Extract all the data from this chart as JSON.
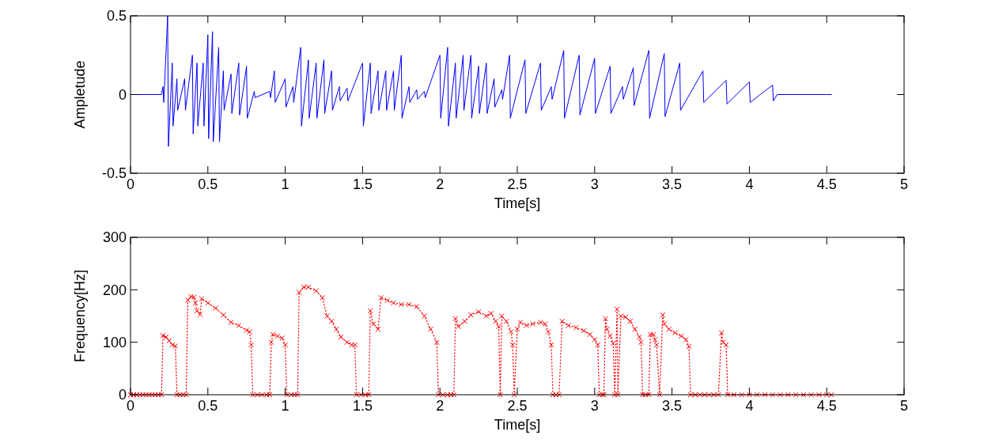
{
  "chart_data": [
    {
      "type": "line",
      "xlabel": "Time[s]",
      "ylabel": "Ampletude",
      "xlim": [
        0,
        5
      ],
      "ylim": [
        -0.5,
        0.5
      ],
      "xticks": [
        0,
        {
          "value": 0.5,
          "label": "0.5"
        },
        1,
        {
          "value": 1.5,
          "label": "1.5"
        },
        2,
        {
          "value": 2.5,
          "label": "2.5"
        },
        3,
        {
          "value": 3.5,
          "label": "3.5"
        },
        4,
        {
          "value": 4.5,
          "label": "4.5"
        },
        5
      ],
      "yticks": [
        -0.5,
        0,
        0.5
      ],
      "marker": "none",
      "line_style": "solid",
      "series": [
        {
          "color": "#0000ff",
          "x": [
            0,
            0.1,
            0.2,
            0.21,
            0.215,
            0.24,
            0.245,
            0.27,
            0.275,
            0.3,
            0.305,
            0.35,
            0.355,
            0.4,
            0.405,
            0.43,
            0.435,
            0.47,
            0.475,
            0.5,
            0.505,
            0.53,
            0.535,
            0.57,
            0.575,
            0.6,
            0.605,
            0.65,
            0.655,
            0.7,
            0.705,
            0.75,
            0.755,
            0.8,
            0.805,
            0.9,
            0.905,
            0.93,
            0.935,
            1.0,
            1.005,
            1.05,
            1.055,
            1.1,
            1.105,
            1.15,
            1.155,
            1.2,
            1.205,
            1.25,
            1.255,
            1.3,
            1.305,
            1.35,
            1.355,
            1.4,
            1.405,
            1.5,
            1.505,
            1.55,
            1.555,
            1.6,
            1.605,
            1.65,
            1.655,
            1.7,
            1.705,
            1.75,
            1.755,
            1.8,
            1.805,
            1.85,
            1.855,
            1.9,
            1.905,
            2.0,
            2.005,
            2.05,
            2.055,
            2.1,
            2.105,
            2.15,
            2.155,
            2.2,
            2.205,
            2.25,
            2.255,
            2.3,
            2.305,
            2.35,
            2.355,
            2.4,
            2.405,
            2.45,
            2.455,
            2.55,
            2.555,
            2.65,
            2.655,
            2.72,
            2.725,
            2.8,
            2.805,
            2.9,
            2.905,
            3.0,
            3.005,
            3.1,
            3.105,
            3.18,
            3.185,
            3.25,
            3.255,
            3.35,
            3.355,
            3.45,
            3.455,
            3.55,
            3.555,
            3.7,
            3.705,
            3.85,
            3.855,
            4.0,
            4.005,
            4.15,
            4.155,
            4.18,
            4.3,
            4.53
          ],
          "values": [
            0,
            0,
            0,
            0.05,
            -0.05,
            0.5,
            -0.33,
            0.2,
            -0.2,
            0.1,
            -0.1,
            0.1,
            -0.1,
            0.25,
            -0.25,
            0.2,
            -0.2,
            0.2,
            -0.2,
            0.38,
            -0.28,
            0.4,
            -0.3,
            0.3,
            -0.3,
            0.15,
            -0.1,
            0.13,
            -0.12,
            0.2,
            -0.13,
            0.18,
            -0.15,
            0.02,
            -0.02,
            0.02,
            -0.02,
            0.15,
            -0.05,
            0.1,
            -0.08,
            0.05,
            -0.05,
            0.3,
            -0.2,
            0.22,
            -0.15,
            0.2,
            -0.15,
            0.22,
            -0.12,
            0.15,
            -0.1,
            0.05,
            -0.04,
            0.04,
            -0.04,
            0.2,
            -0.2,
            0.2,
            -0.12,
            0.15,
            -0.1,
            0.15,
            -0.1,
            0.15,
            -0.1,
            0.25,
            -0.15,
            0.05,
            -0.05,
            0.03,
            -0.03,
            0.02,
            -0.02,
            0.25,
            -0.15,
            0.3,
            -0.2,
            0.2,
            -0.15,
            0.25,
            -0.1,
            0.25,
            -0.15,
            0.18,
            -0.12,
            0.2,
            -0.12,
            0.1,
            -0.08,
            0.03,
            -0.03,
            0.25,
            -0.15,
            0.22,
            -0.12,
            0.2,
            -0.1,
            0.05,
            -0.03,
            0.28,
            -0.15,
            0.25,
            -0.13,
            0.23,
            -0.12,
            0.18,
            -0.12,
            0.05,
            -0.03,
            0.17,
            -0.07,
            0.28,
            -0.15,
            0.26,
            -0.14,
            0.2,
            -0.1,
            0.15,
            -0.05,
            0.09,
            -0.06,
            0.08,
            -0.05,
            0.06,
            -0.04,
            0,
            0,
            0
          ]
        }
      ]
    },
    {
      "type": "line",
      "xlabel": "Time[s]",
      "ylabel": "Frequency[Hz]",
      "xlim": [
        0,
        5
      ],
      "ylim": [
        0,
        300
      ],
      "xticks": [
        0,
        {
          "value": 0.5,
          "label": "0.5"
        },
        1,
        {
          "value": 1.5,
          "label": "1.5"
        },
        2,
        {
          "value": 2.5,
          "label": "2.5"
        },
        3,
        {
          "value": 3.5,
          "label": "3.5"
        },
        4,
        {
          "value": 4.5,
          "label": "4.5"
        },
        5
      ],
      "yticks": [
        0,
        100,
        200,
        300
      ],
      "marker": "cross",
      "line_style": "dotted",
      "series": [
        {
          "color": "#ff0000",
          "x": [
            0,
            0.02,
            0.04,
            0.06,
            0.08,
            0.1,
            0.12,
            0.14,
            0.16,
            0.18,
            0.2,
            0.21,
            0.23,
            0.25,
            0.27,
            0.29,
            0.3,
            0.32,
            0.34,
            0.36,
            0.37,
            0.39,
            0.41,
            0.42,
            0.43,
            0.45,
            0.46,
            0.5,
            0.55,
            0.6,
            0.65,
            0.7,
            0.75,
            0.77,
            0.78,
            0.79,
            0.82,
            0.85,
            0.88,
            0.9,
            0.91,
            0.92,
            0.95,
            0.98,
            1.0,
            1.01,
            1.04,
            1.06,
            1.08,
            1.09,
            1.12,
            1.15,
            1.2,
            1.24,
            1.27,
            1.3,
            1.33,
            1.36,
            1.4,
            1.43,
            1.45,
            1.46,
            1.49,
            1.52,
            1.54,
            1.55,
            1.57,
            1.6,
            1.62,
            1.66,
            1.7,
            1.75,
            1.8,
            1.85,
            1.9,
            1.94,
            1.98,
            1.99,
            2.02,
            2.05,
            2.07,
            2.09,
            2.1,
            2.12,
            2.16,
            2.2,
            2.25,
            2.3,
            2.33,
            2.36,
            2.38,
            2.39,
            2.4,
            2.43,
            2.46,
            2.47,
            2.48,
            2.5,
            2.52,
            2.56,
            2.6,
            2.65,
            2.68,
            2.7,
            2.72,
            2.73,
            2.75,
            2.77,
            2.79,
            2.83,
            2.88,
            2.93,
            2.97,
            3.0,
            3.02,
            3.03,
            3.05,
            3.06,
            3.07,
            3.08,
            3.1,
            3.12,
            3.13,
            3.145,
            3.15,
            3.17,
            3.2,
            3.23,
            3.26,
            3.29,
            3.3,
            3.31,
            3.33,
            3.35,
            3.36,
            3.38,
            3.39,
            3.4,
            3.42,
            3.44,
            3.45,
            3.48,
            3.52,
            3.56,
            3.59,
            3.61,
            3.62,
            3.65,
            3.68,
            3.71,
            3.74,
            3.77,
            3.8,
            3.82,
            3.83,
            3.85,
            3.86,
            3.9,
            3.95,
            4.0,
            4.05,
            4.1,
            4.15,
            4.2,
            4.25,
            4.3,
            4.35,
            4.4,
            4.45,
            4.5,
            4.53
          ],
          "values": [
            0,
            0,
            0,
            0,
            0,
            0,
            0,
            0,
            0,
            0,
            0,
            113,
            110,
            103,
            95,
            93,
            0,
            0,
            0,
            0,
            180,
            187,
            186,
            175,
            160,
            153,
            183,
            175,
            165,
            152,
            138,
            132,
            123,
            120,
            95,
            0,
            0,
            0,
            0,
            0,
            100,
            115,
            112,
            108,
            95,
            0,
            0,
            0,
            0,
            195,
            205,
            205,
            198,
            185,
            150,
            140,
            125,
            110,
            100,
            95,
            95,
            0,
            0,
            0,
            0,
            160,
            135,
            125,
            185,
            180,
            175,
            172,
            172,
            168,
            150,
            125,
            100,
            0,
            0,
            0,
            0,
            0,
            145,
            130,
            140,
            152,
            158,
            150,
            155,
            140,
            130,
            0,
            150,
            140,
            120,
            95,
            0,
            125,
            138,
            132,
            135,
            138,
            135,
            120,
            95,
            0,
            0,
            0,
            140,
            132,
            128,
            122,
            115,
            105,
            95,
            0,
            0,
            0,
            145,
            125,
            112,
            98,
            0,
            163,
            0,
            150,
            148,
            140,
            125,
            110,
            100,
            0,
            0,
            0,
            115,
            115,
            105,
            95,
            0,
            152,
            135,
            125,
            118,
            112,
            105,
            92,
            0,
            0,
            0,
            0,
            0,
            0,
            0,
            118,
            100,
            95,
            0,
            0,
            0,
            0,
            0,
            0,
            0,
            0,
            0,
            0,
            0,
            0,
            0,
            0,
            0
          ]
        }
      ]
    }
  ]
}
